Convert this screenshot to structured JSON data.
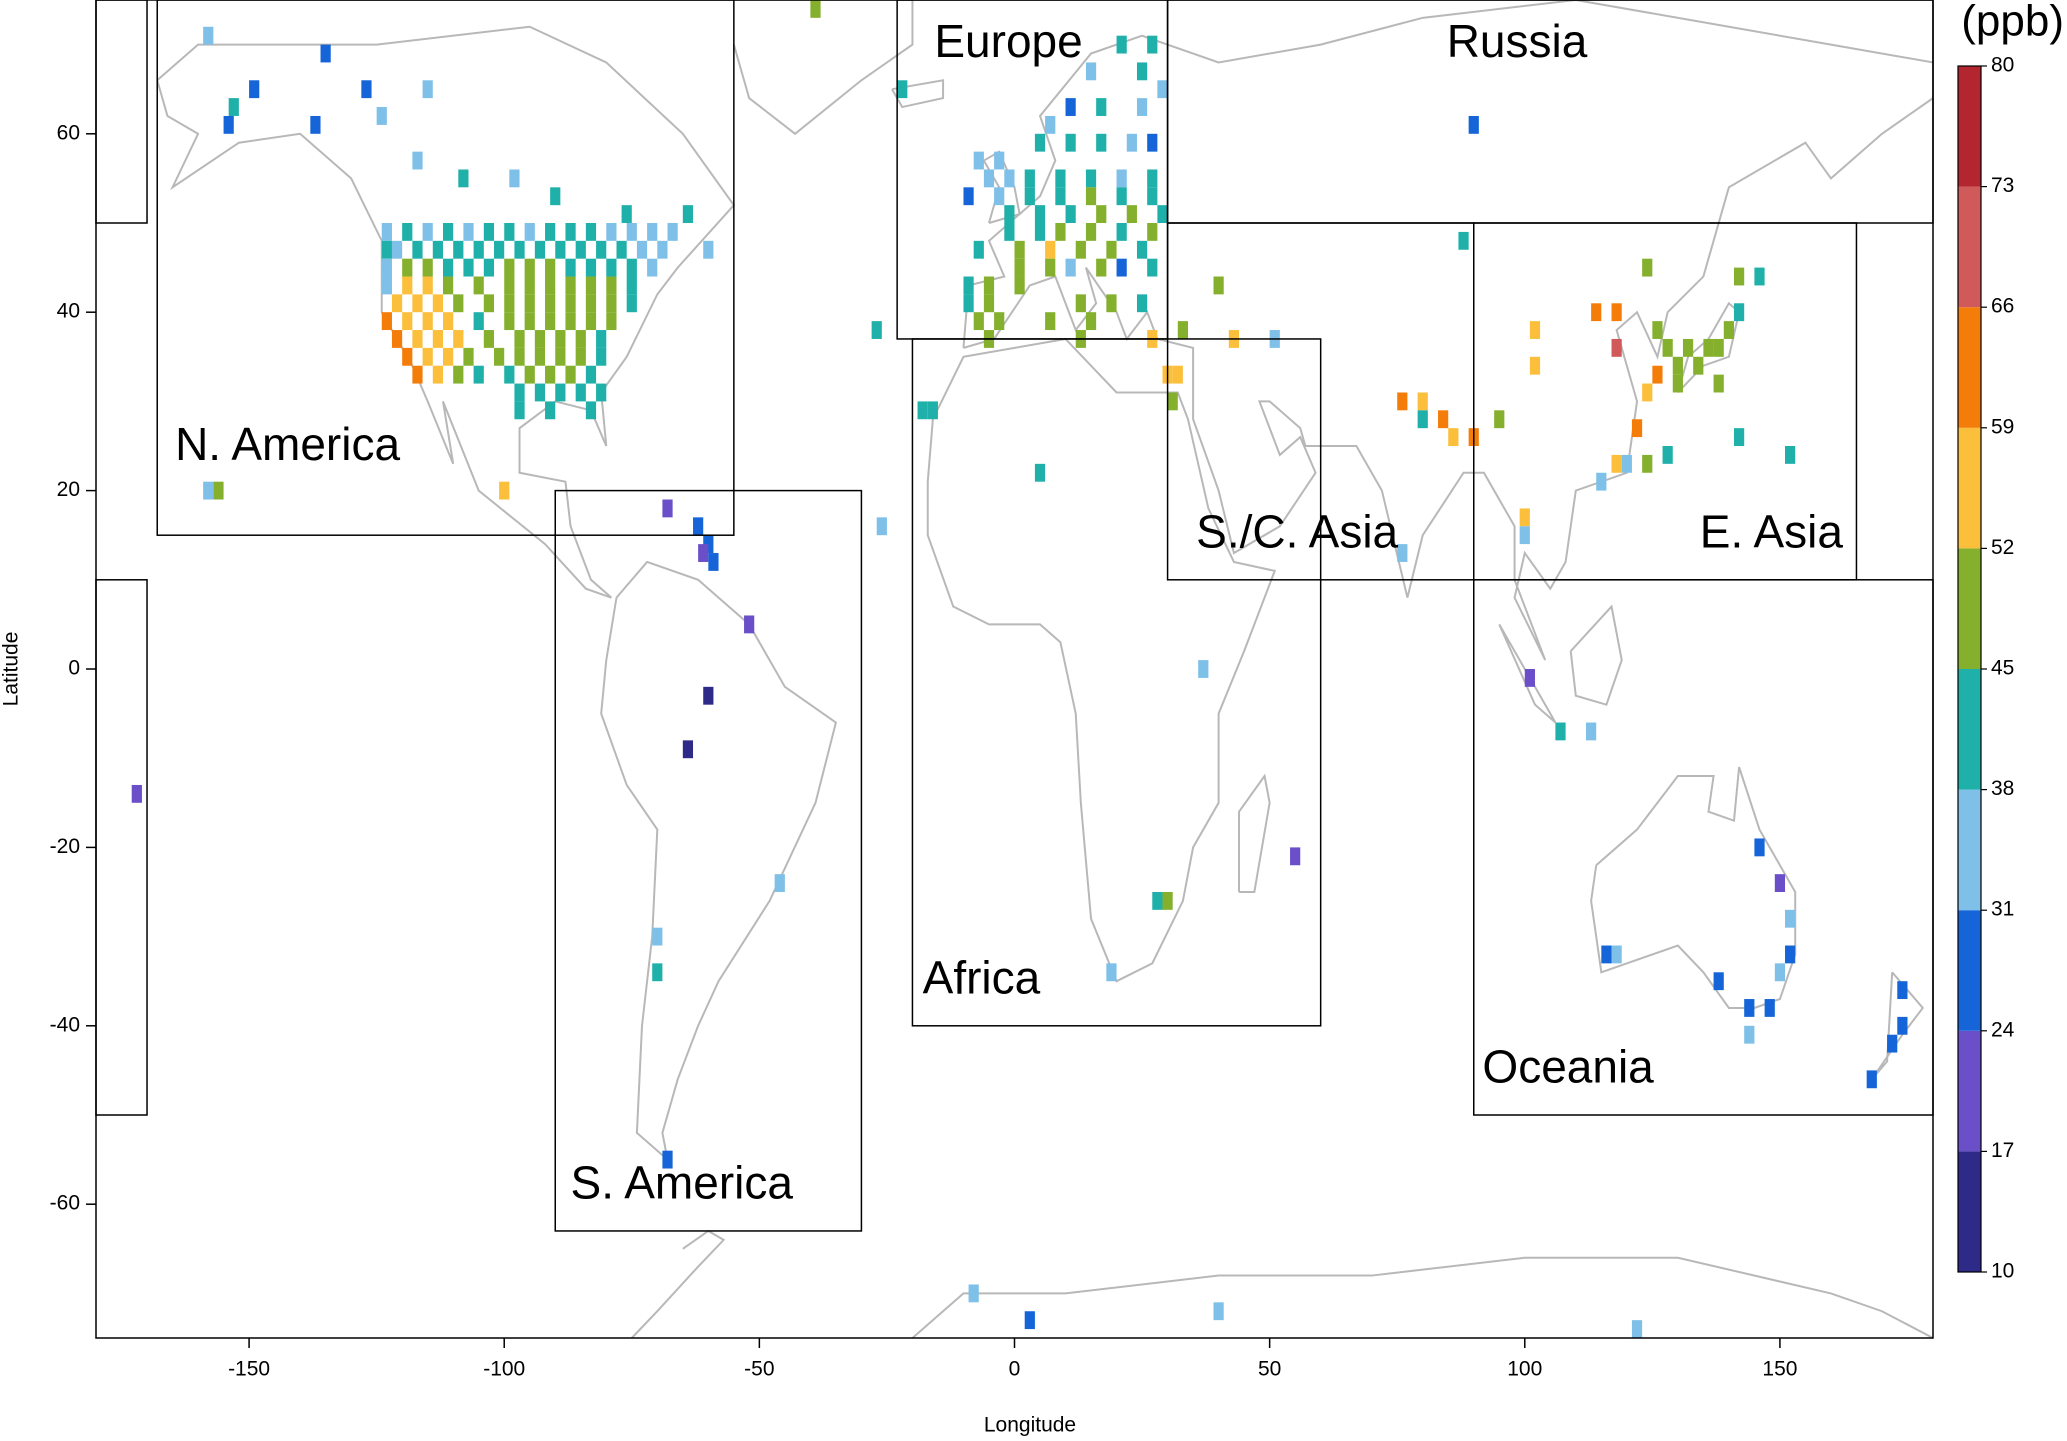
{
  "chart_data": {
    "type": "map",
    "x_label": "Longitude",
    "y_label": "Latitude",
    "xlim": [
      -180,
      180
    ],
    "ylim": [
      -75,
      75
    ],
    "xticks": [
      -150,
      -100,
      -50,
      0,
      50,
      100,
      150
    ],
    "yticks": [
      -60,
      -40,
      -20,
      0,
      20,
      40,
      60
    ],
    "regions": [
      "N. America",
      "Europe",
      "Russia",
      "S./C. Asia",
      "E. Asia",
      "Africa",
      "S. America",
      "Oceania"
    ],
    "colorbar": {
      "title": "(ppb)",
      "ticks": [
        10,
        17,
        24,
        31,
        38,
        45,
        52,
        59,
        66,
        73,
        80
      ],
      "colors": [
        "#2e2a87",
        "#6a4fc8",
        "#1565d8",
        "#7ec0e8",
        "#20b0aa",
        "#84b02e",
        "#fbbf3c",
        "#f47d0a",
        "#d05a5a",
        "#b3262f"
      ]
    },
    "cells": [
      [
        -123,
        49,
        35
      ],
      [
        -119,
        49,
        42
      ],
      [
        -115,
        49,
        35
      ],
      [
        -111,
        49,
        42
      ],
      [
        -107,
        49,
        35
      ],
      [
        -103,
        49,
        42
      ],
      [
        -99,
        49,
        42
      ],
      [
        -95,
        49,
        35
      ],
      [
        -91,
        49,
        42
      ],
      [
        -87,
        49,
        42
      ],
      [
        -83,
        49,
        42
      ],
      [
        -79,
        49,
        35
      ],
      [
        -75,
        49,
        35
      ],
      [
        -71,
        49,
        35
      ],
      [
        -67,
        49,
        35
      ],
      [
        -123,
        47,
        42
      ],
      [
        -121,
        47,
        35
      ],
      [
        -117,
        47,
        42
      ],
      [
        -113,
        47,
        42
      ],
      [
        -109,
        47,
        42
      ],
      [
        -105,
        47,
        42
      ],
      [
        -101,
        47,
        42
      ],
      [
        -97,
        47,
        42
      ],
      [
        -93,
        47,
        42
      ],
      [
        -89,
        47,
        42
      ],
      [
        -85,
        47,
        42
      ],
      [
        -81,
        47,
        42
      ],
      [
        -77,
        47,
        42
      ],
      [
        -73,
        47,
        35
      ],
      [
        -69,
        47,
        35
      ],
      [
        -123,
        45,
        35
      ],
      [
        -119,
        45,
        48
      ],
      [
        -115,
        45,
        48
      ],
      [
        -111,
        45,
        42
      ],
      [
        -107,
        45,
        42
      ],
      [
        -103,
        45,
        42
      ],
      [
        -99,
        45,
        48
      ],
      [
        -95,
        45,
        48
      ],
      [
        -91,
        45,
        48
      ],
      [
        -87,
        45,
        42
      ],
      [
        -83,
        45,
        42
      ],
      [
        -79,
        45,
        42
      ],
      [
        -75,
        45,
        42
      ],
      [
        -71,
        45,
        35
      ],
      [
        -123,
        43,
        35
      ],
      [
        -119,
        43,
        55
      ],
      [
        -115,
        43,
        55
      ],
      [
        -111,
        43,
        48
      ],
      [
        -105,
        43,
        48
      ],
      [
        -99,
        43,
        48
      ],
      [
        -95,
        43,
        48
      ],
      [
        -91,
        43,
        48
      ],
      [
        -87,
        43,
        48
      ],
      [
        -83,
        43,
        48
      ],
      [
        -79,
        43,
        48
      ],
      [
        -75,
        43,
        42
      ],
      [
        -121,
        41,
        55
      ],
      [
        -117,
        41,
        55
      ],
      [
        -113,
        41,
        55
      ],
      [
        -109,
        41,
        48
      ],
      [
        -103,
        41,
        48
      ],
      [
        -99,
        41,
        48
      ],
      [
        -95,
        41,
        48
      ],
      [
        -91,
        41,
        48
      ],
      [
        -87,
        41,
        48
      ],
      [
        -83,
        41,
        48
      ],
      [
        -79,
        41,
        48
      ],
      [
        -75,
        41,
        42
      ],
      [
        -123,
        39,
        62
      ],
      [
        -119,
        39,
        55
      ],
      [
        -115,
        39,
        55
      ],
      [
        -111,
        39,
        55
      ],
      [
        -105,
        39,
        42
      ],
      [
        -99,
        39,
        48
      ],
      [
        -95,
        39,
        48
      ],
      [
        -91,
        39,
        48
      ],
      [
        -87,
        39,
        48
      ],
      [
        -83,
        39,
        48
      ],
      [
        -79,
        39,
        48
      ],
      [
        -121,
        37,
        62
      ],
      [
        -117,
        37,
        55
      ],
      [
        -113,
        37,
        55
      ],
      [
        -109,
        37,
        55
      ],
      [
        -103,
        37,
        48
      ],
      [
        -97,
        37,
        48
      ],
      [
        -93,
        37,
        48
      ],
      [
        -89,
        37,
        48
      ],
      [
        -85,
        37,
        48
      ],
      [
        -81,
        37,
        42
      ],
      [
        -119,
        35,
        62
      ],
      [
        -115,
        35,
        55
      ],
      [
        -111,
        35,
        55
      ],
      [
        -107,
        35,
        48
      ],
      [
        -101,
        35,
        48
      ],
      [
        -97,
        35,
        48
      ],
      [
        -93,
        35,
        48
      ],
      [
        -89,
        35,
        48
      ],
      [
        -85,
        35,
        48
      ],
      [
        -81,
        35,
        42
      ],
      [
        -117,
        33,
        62
      ],
      [
        -113,
        33,
        55
      ],
      [
        -109,
        33,
        48
      ],
      [
        -105,
        33,
        42
      ],
      [
        -99,
        33,
        42
      ],
      [
        -95,
        33,
        48
      ],
      [
        -91,
        33,
        48
      ],
      [
        -87,
        33,
        48
      ],
      [
        -83,
        33,
        42
      ],
      [
        -97,
        31,
        42
      ],
      [
        -93,
        31,
        42
      ],
      [
        -89,
        31,
        42
      ],
      [
        -85,
        31,
        42
      ],
      [
        -81,
        31,
        42
      ],
      [
        -97,
        29,
        42
      ],
      [
        -91,
        29,
        42
      ],
      [
        -83,
        29,
        42
      ],
      [
        -158,
        71,
        35
      ],
      [
        -135,
        69,
        28
      ],
      [
        -149,
        65,
        28
      ],
      [
        -127,
        65,
        28
      ],
      [
        -115,
        65,
        35
      ],
      [
        -153,
        63,
        42
      ],
      [
        -124,
        62,
        35
      ],
      [
        -154,
        61,
        28
      ],
      [
        -137,
        61,
        28
      ],
      [
        -117,
        57,
        35
      ],
      [
        -108,
        55,
        42
      ],
      [
        -98,
        55,
        35
      ],
      [
        -90,
        53,
        42
      ],
      [
        -76,
        51,
        42
      ],
      [
        -64,
        51,
        42
      ],
      [
        -60,
        47,
        35
      ],
      [
        -100,
        20,
        55
      ],
      [
        -156,
        20,
        48
      ],
      [
        -158,
        20,
        35
      ],
      [
        -68,
        18,
        20
      ],
      [
        -62,
        16,
        28
      ],
      [
        -60,
        14,
        28
      ],
      [
        -61,
        13,
        20
      ],
      [
        -59,
        12,
        28
      ],
      [
        -52,
        5,
        20
      ],
      [
        -60,
        -3,
        14
      ],
      [
        -64,
        -9,
        14
      ],
      [
        -46,
        -24,
        35
      ],
      [
        -70,
        -30,
        35
      ],
      [
        -70,
        -34,
        42
      ],
      [
        -68,
        -55,
        28
      ],
      [
        21,
        70,
        42
      ],
      [
        27,
        70,
        42
      ],
      [
        -22,
        65,
        42
      ],
      [
        15,
        67,
        35
      ],
      [
        25,
        67,
        42
      ],
      [
        29,
        65,
        35
      ],
      [
        7,
        61,
        35
      ],
      [
        11,
        63,
        28
      ],
      [
        17,
        63,
        42
      ],
      [
        25,
        63,
        35
      ],
      [
        -7,
        57,
        35
      ],
      [
        -3,
        57,
        35
      ],
      [
        5,
        59,
        42
      ],
      [
        11,
        59,
        42
      ],
      [
        17,
        59,
        42
      ],
      [
        23,
        59,
        35
      ],
      [
        27,
        59,
        28
      ],
      [
        -5,
        55,
        35
      ],
      [
        -1,
        55,
        35
      ],
      [
        3,
        55,
        42
      ],
      [
        9,
        55,
        42
      ],
      [
        15,
        55,
        42
      ],
      [
        21,
        55,
        35
      ],
      [
        27,
        55,
        42
      ],
      [
        -9,
        53,
        28
      ],
      [
        -3,
        53,
        35
      ],
      [
        3,
        53,
        42
      ],
      [
        9,
        53,
        42
      ],
      [
        15,
        53,
        48
      ],
      [
        21,
        53,
        42
      ],
      [
        27,
        53,
        42
      ],
      [
        -1,
        51,
        42
      ],
      [
        5,
        51,
        42
      ],
      [
        11,
        51,
        42
      ],
      [
        17,
        51,
        48
      ],
      [
        23,
        51,
        48
      ],
      [
        29,
        51,
        42
      ],
      [
        -1,
        49,
        42
      ],
      [
        5,
        49,
        42
      ],
      [
        9,
        49,
        48
      ],
      [
        15,
        49,
        48
      ],
      [
        21,
        49,
        42
      ],
      [
        27,
        49,
        48
      ],
      [
        -7,
        47,
        42
      ],
      [
        1,
        47,
        48
      ],
      [
        7,
        47,
        55
      ],
      [
        13,
        47,
        48
      ],
      [
        19,
        47,
        48
      ],
      [
        25,
        47,
        42
      ],
      [
        -9,
        43,
        42
      ],
      [
        -5,
        43,
        48
      ],
      [
        1,
        45,
        48
      ],
      [
        7,
        45,
        48
      ],
      [
        11,
        45,
        35
      ],
      [
        17,
        45,
        48
      ],
      [
        21,
        45,
        28
      ],
      [
        27,
        45,
        42
      ],
      [
        -9,
        41,
        42
      ],
      [
        -5,
        41,
        48
      ],
      [
        1,
        43,
        48
      ],
      [
        13,
        41,
        48
      ],
      [
        19,
        41,
        48
      ],
      [
        25,
        41,
        42
      ],
      [
        -7,
        39,
        48
      ],
      [
        -3,
        39,
        48
      ],
      [
        7,
        39,
        48
      ],
      [
        15,
        39,
        48
      ],
      [
        -5,
        37,
        48
      ],
      [
        13,
        37,
        48
      ],
      [
        27,
        37,
        55
      ],
      [
        -16,
        29,
        42
      ],
      [
        -18,
        29,
        42
      ],
      [
        -27,
        38,
        42
      ],
      [
        -39,
        74,
        48
      ],
      [
        5,
        22,
        42
      ],
      [
        -26,
        16,
        35
      ],
      [
        37,
        0,
        35
      ],
      [
        28,
        -26,
        42
      ],
      [
        30,
        -26,
        48
      ],
      [
        19,
        -34,
        35
      ],
      [
        55,
        -21,
        20
      ],
      [
        -172,
        -14,
        20
      ],
      [
        30,
        33,
        55
      ],
      [
        32,
        33,
        55
      ],
      [
        31,
        30,
        48
      ],
      [
        33,
        38,
        48
      ],
      [
        40,
        43,
        48
      ],
      [
        43,
        37,
        55
      ],
      [
        51,
        37,
        35
      ],
      [
        76,
        30,
        62
      ],
      [
        80,
        30,
        55
      ],
      [
        80,
        28,
        42
      ],
      [
        84,
        28,
        62
      ],
      [
        86,
        26,
        55
      ],
      [
        90,
        26,
        62
      ],
      [
        95,
        28,
        48
      ],
      [
        88,
        48,
        42
      ],
      [
        90,
        61,
        28
      ],
      [
        76,
        13,
        35
      ],
      [
        100,
        17,
        55
      ],
      [
        100,
        15,
        35
      ],
      [
        101,
        -1,
        20
      ],
      [
        107,
        -7,
        42
      ],
      [
        113,
        -7,
        35
      ],
      [
        115,
        21,
        35
      ],
      [
        118,
        23,
        55
      ],
      [
        120,
        23,
        35
      ],
      [
        122,
        27,
        62
      ],
      [
        124,
        23,
        48
      ],
      [
        114,
        40,
        62
      ],
      [
        118,
        40,
        62
      ],
      [
        118,
        36,
        70
      ],
      [
        126,
        38,
        48
      ],
      [
        128,
        36,
        48
      ],
      [
        130,
        34,
        48
      ],
      [
        132,
        36,
        48
      ],
      [
        134,
        34,
        48
      ],
      [
        136,
        36,
        48
      ],
      [
        138,
        36,
        48
      ],
      [
        140,
        38,
        48
      ],
      [
        142,
        40,
        42
      ],
      [
        142,
        44,
        48
      ],
      [
        146,
        44,
        42
      ],
      [
        128,
        24,
        42
      ],
      [
        142,
        26,
        42
      ],
      [
        152,
        24,
        42
      ],
      [
        124,
        31,
        55
      ],
      [
        126,
        33,
        62
      ],
      [
        102,
        34,
        55
      ],
      [
        102,
        38,
        55
      ],
      [
        124,
        45,
        48
      ],
      [
        138,
        32,
        48
      ],
      [
        130,
        32,
        48
      ],
      [
        146,
        -20,
        28
      ],
      [
        150,
        -24,
        20
      ],
      [
        152,
        -28,
        35
      ],
      [
        152,
        -32,
        28
      ],
      [
        150,
        -34,
        35
      ],
      [
        148,
        -38,
        28
      ],
      [
        144,
        -38,
        28
      ],
      [
        138,
        -35,
        28
      ],
      [
        116,
        -32,
        28
      ],
      [
        118,
        -32,
        35
      ],
      [
        144,
        -41,
        35
      ],
      [
        174,
        -36,
        28
      ],
      [
        174,
        -40,
        28
      ],
      [
        172,
        -42,
        28
      ],
      [
        168,
        -46,
        28
      ],
      [
        122,
        -74,
        35
      ],
      [
        40,
        -72,
        35
      ],
      [
        -8,
        -70,
        35
      ],
      [
        3,
        -73,
        28
      ]
    ]
  }
}
